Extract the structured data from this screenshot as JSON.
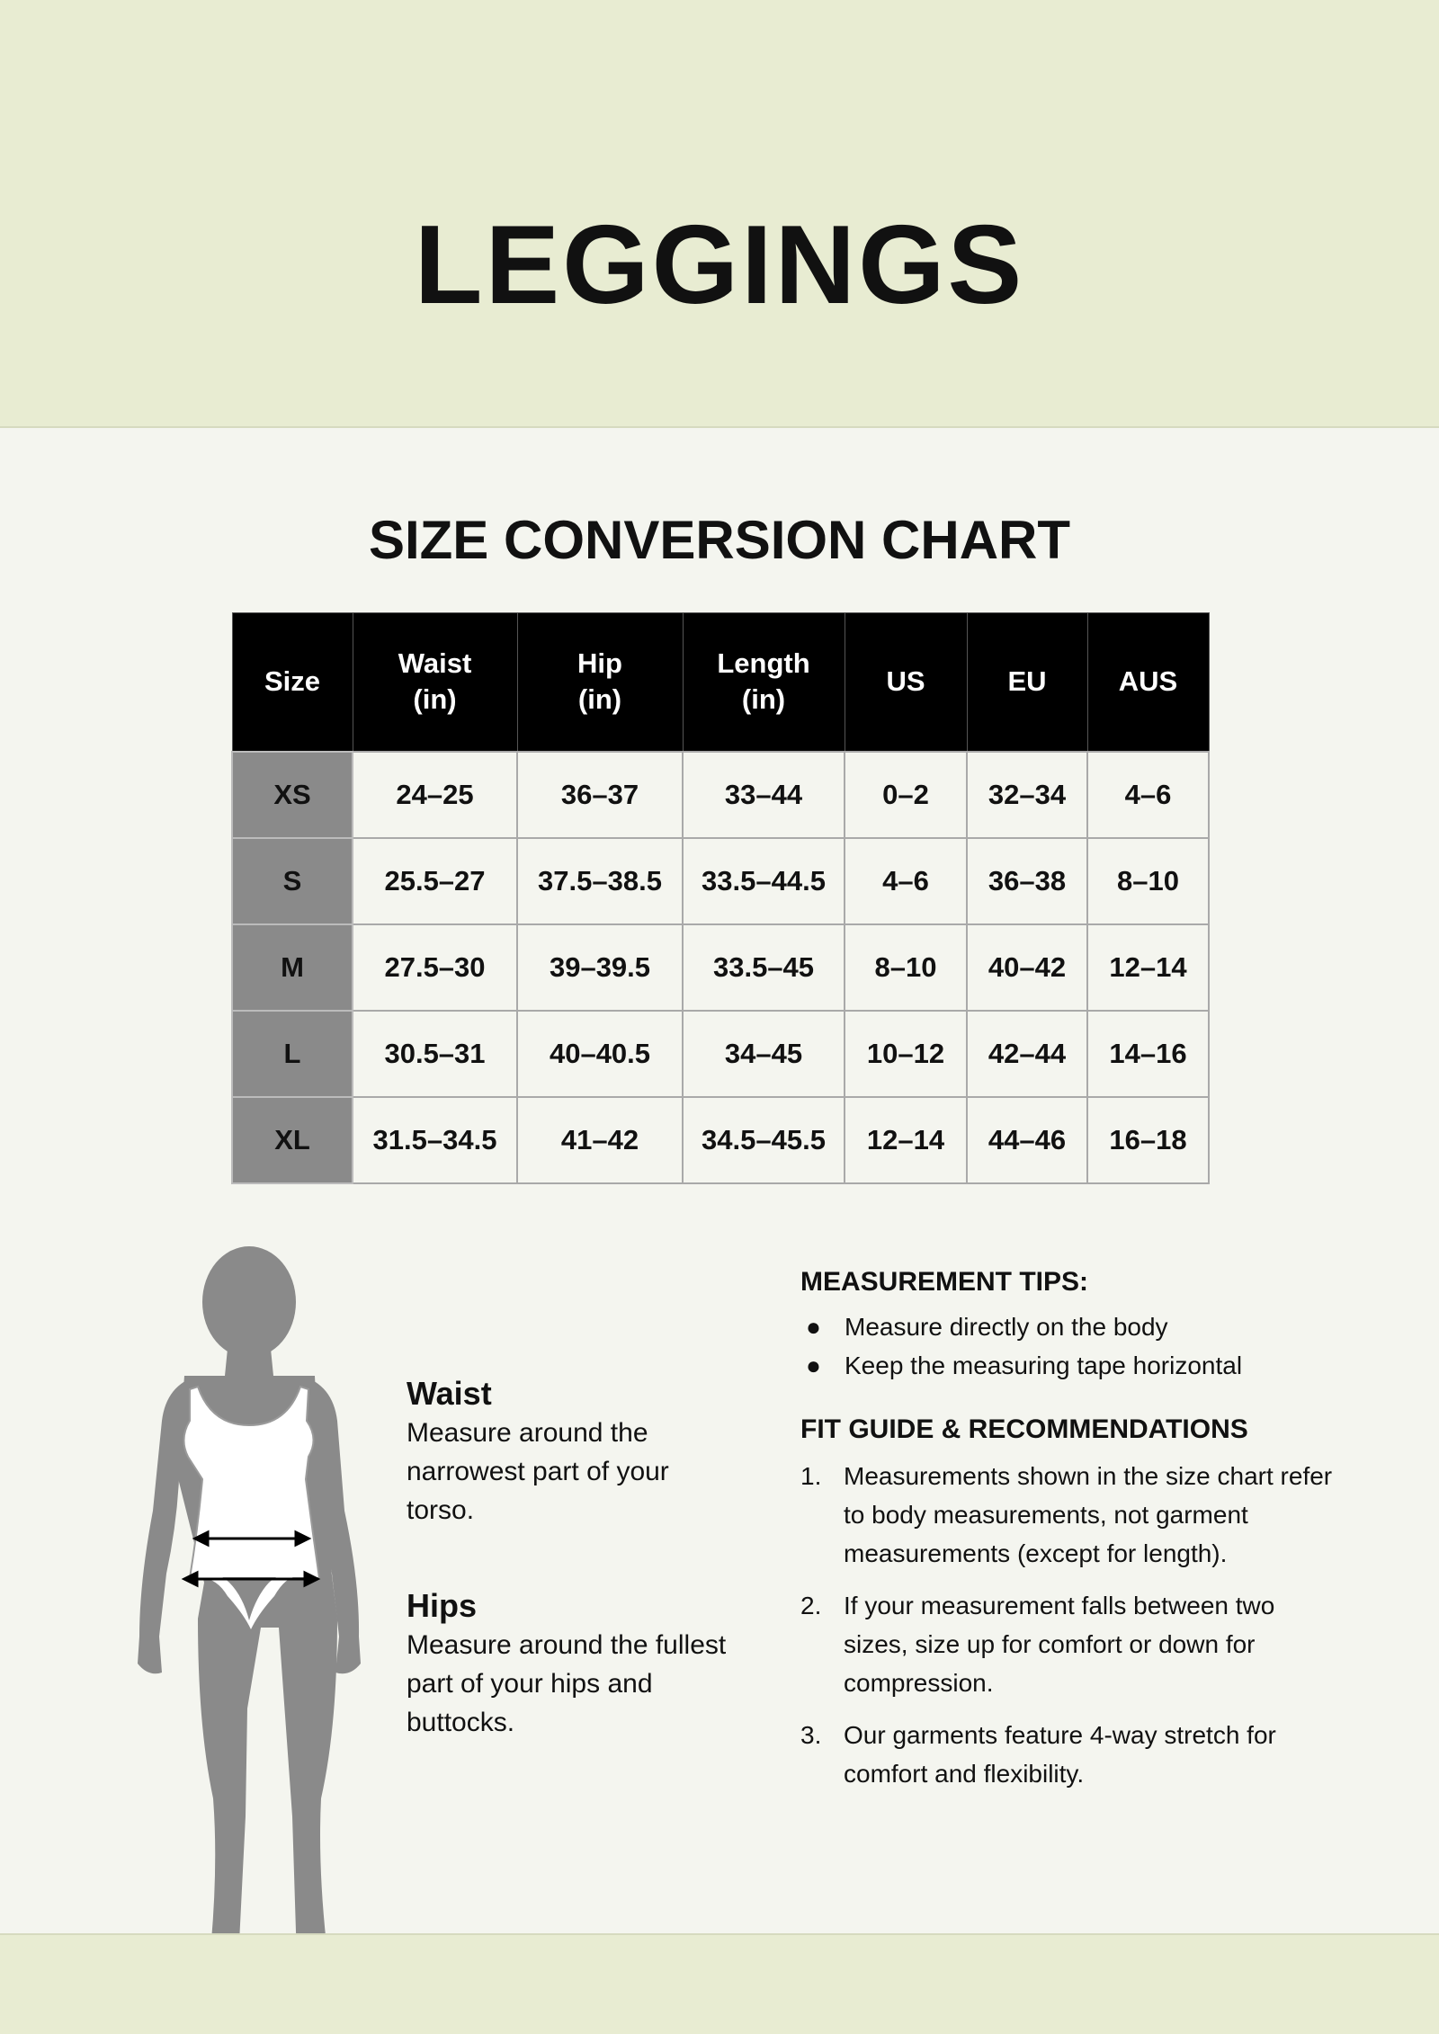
{
  "header": {
    "title": "LEGGINGS"
  },
  "chart_title": "SIZE CONVERSION CHART",
  "table": {
    "columns": [
      [
        "Size"
      ],
      [
        "Waist",
        "(in)"
      ],
      [
        "Hip",
        "(in)"
      ],
      [
        "Length",
        "(in)"
      ],
      [
        "US"
      ],
      [
        "EU"
      ],
      [
        "AUS"
      ]
    ],
    "rows": [
      [
        "XS",
        "24–25",
        "36–37",
        "33–44",
        "0–2",
        "32–34",
        "4–6"
      ],
      [
        "S",
        "25.5–27",
        "37.5–38.5",
        "33.5–44.5",
        "4–6",
        "36–38",
        "8–10"
      ],
      [
        "M",
        "27.5–30",
        "39–39.5",
        "33.5–45",
        "8–10",
        "40–42",
        "12–14"
      ],
      [
        "L",
        "30.5–31",
        "40–40.5",
        "34–45",
        "10–12",
        "42–44",
        "14–16"
      ],
      [
        "XL",
        "31.5–34.5",
        "41–42",
        "34.5–45.5",
        "12–14",
        "44–46",
        "16–18"
      ]
    ]
  },
  "guide": {
    "waist": {
      "title": "Waist",
      "text": "Measure around the narrowest part of your torso."
    },
    "hips": {
      "title": "Hips",
      "text": "Measure around the fullest part of your hips and buttocks."
    }
  },
  "tips": {
    "title": "MEASUREMENT TIPS:",
    "items": [
      "Measure directly on the body",
      "Keep the measuring tape horizontal"
    ]
  },
  "fit": {
    "title": "FIT GUIDE & RECOMMENDATIONS",
    "items": [
      "Measurements shown in the size chart refer to body measurements, not garment measurements (except for length).",
      "If your measurement falls between two sizes, size up for comfort or down for compression.",
      "Our garments feature 4-way stretch for comfort and flexibility."
    ]
  },
  "colors": {
    "band": "#e8ecd2",
    "background": "#f4f5ef",
    "header_bg": "#000000",
    "size_col": "#8a8a8a"
  }
}
